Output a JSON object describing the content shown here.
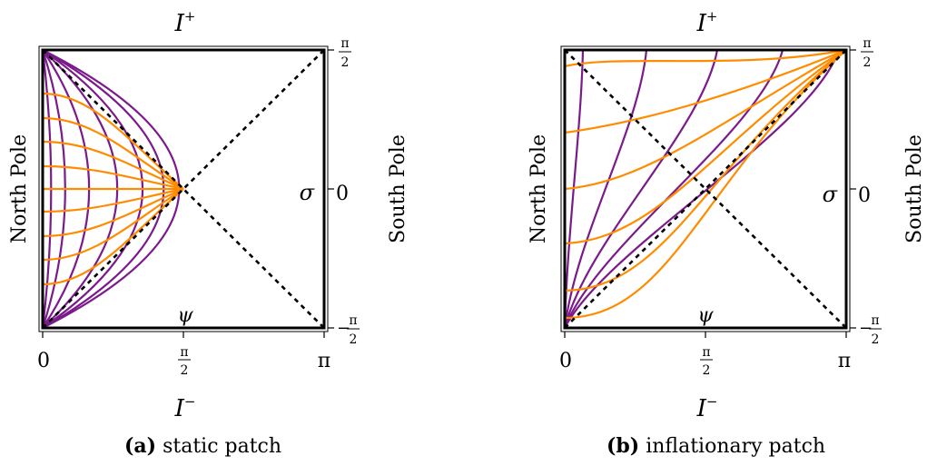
{
  "colors": {
    "purple": "#7b1a8b",
    "orange": "#ff8c00",
    "frame": "#000000"
  },
  "panels": [
    {
      "id": "a",
      "caption_letter": "(a)",
      "caption_text": "static patch",
      "top_label": "I",
      "top_sup": "+",
      "bottom_label": "I",
      "bottom_sup": "−",
      "left_label": "North Pole",
      "right_label": "South Pole",
      "x_axis_symbol": "ψ",
      "y_axis_symbol": "σ",
      "x_ticks": {
        "zero": "0",
        "half_num": "π",
        "half_den": "2",
        "pi": "π"
      },
      "y_ticks": {
        "top_num": "π",
        "top_den": "2",
        "zero": "0",
        "bottom_sign": "−",
        "bottom_num": "π",
        "bottom_den": "2"
      },
      "curve_counts": {
        "purple": 7,
        "orange": 9
      }
    },
    {
      "id": "b",
      "caption_letter": "(b)",
      "caption_text": "inflationary patch",
      "top_label": "I",
      "top_sup": "+",
      "bottom_label": "I",
      "bottom_sup": "−",
      "left_label": "North Pole",
      "right_label": "South Pole",
      "x_axis_symbol": "ψ",
      "y_axis_symbol": "σ",
      "x_ticks": {
        "zero": "0",
        "half_num": "π",
        "half_den": "2",
        "pi": "π"
      },
      "y_ticks": {
        "top_num": "π",
        "top_den": "2",
        "zero": "0",
        "bottom_sign": "−",
        "bottom_num": "π",
        "bottom_den": "2"
      },
      "curve_counts": {
        "purple": 5,
        "orange": 6
      }
    }
  ]
}
